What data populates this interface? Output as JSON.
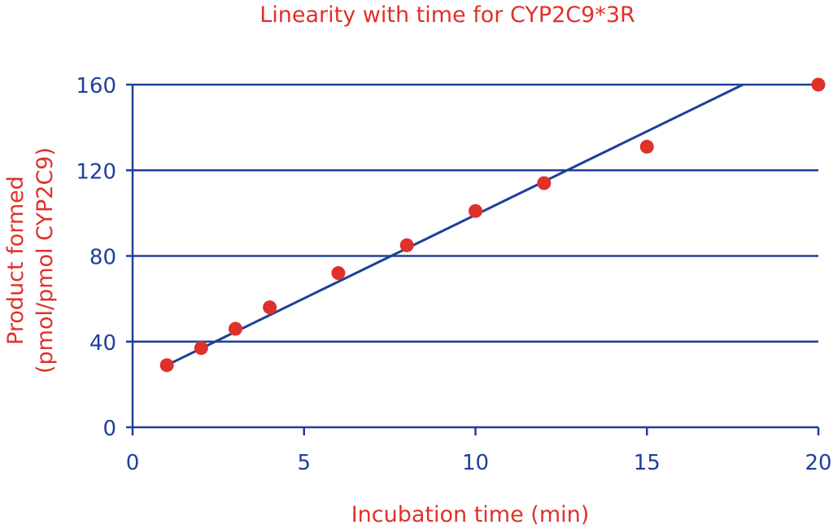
{
  "chart_data": {
    "type": "scatter",
    "title": "Linearity with time for CYP2C9*3R",
    "xlabel": "Incubation time (min)",
    "ylabel": [
      "Product formed",
      "(pmol/pmol CYP2C9)"
    ],
    "xlim": [
      0,
      20
    ],
    "ylim": [
      0,
      160
    ],
    "x_ticks": [
      0,
      5,
      10,
      15,
      20
    ],
    "y_ticks": [
      0,
      40,
      80,
      120,
      160
    ],
    "grid": "horizontal",
    "series": [
      {
        "points": [
          {
            "x": 1,
            "y": 29
          },
          {
            "x": 2,
            "y": 37
          },
          {
            "x": 3,
            "y": 46
          },
          {
            "x": 4,
            "y": 56
          },
          {
            "x": 6,
            "y": 72
          },
          {
            "x": 8,
            "y": 85
          },
          {
            "x": 10,
            "y": 101
          },
          {
            "x": 12,
            "y": 114
          },
          {
            "x": 15,
            "y": 131
          },
          {
            "x": 20,
            "y": 160
          }
        ]
      }
    ],
    "trendline": {
      "x": [
        1,
        17.8
      ],
      "y": [
        29,
        160
      ]
    },
    "colors": {
      "points": "#e0302a",
      "axes": "#1f3f9a",
      "grid": "#1f3f9a",
      "trendline": "#1f3f9a",
      "labels": "#e0302a",
      "ticks": "#1f3f9a"
    }
  }
}
